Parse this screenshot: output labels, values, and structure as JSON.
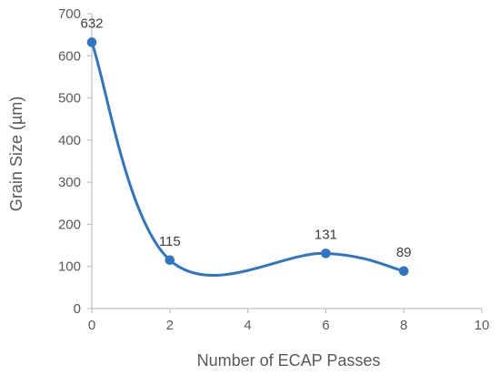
{
  "chart_data": {
    "type": "line",
    "title": "",
    "xlabel": "Number of ECAP Passes",
    "ylabel": "Grain Size (µm)",
    "xlim": [
      0,
      10
    ],
    "ylim": [
      0,
      700
    ],
    "xticks": [
      0,
      2,
      4,
      6,
      8,
      10
    ],
    "yticks": [
      0,
      100,
      200,
      300,
      400,
      500,
      600,
      700
    ],
    "grid": false,
    "legend": "none",
    "smoothed": true,
    "series": [
      {
        "color": "#2E75C4",
        "x": [
          0,
          2,
          6,
          8
        ],
        "values": [
          632,
          115,
          131,
          89
        ],
        "labels": [
          "632",
          "115",
          "131",
          "89"
        ]
      }
    ]
  }
}
